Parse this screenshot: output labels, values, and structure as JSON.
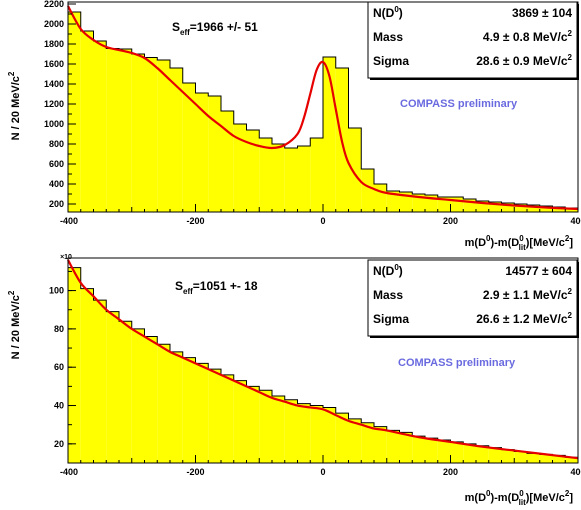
{
  "chart_data": [
    {
      "type": "bar",
      "style": "filled histogram with fit curve",
      "xlabel_parts": [
        "m(D",
        "0",
        ")-m(D",
        "0",
        "lit",
        ")[MeV/c",
        "2",
        "]"
      ],
      "ylabel_parts": [
        "N / 20 MeV/c",
        "2"
      ],
      "xlim": [
        -400,
        400
      ],
      "ylim": [
        120,
        2220
      ],
      "x_ticks": [
        "-400",
        "-200",
        "0",
        "200",
        "400"
      ],
      "y_ticks": [
        "200",
        "400",
        "600",
        "800",
        "1000",
        "1200",
        "1400",
        "1600",
        "1800",
        "2000",
        "2200"
      ],
      "grid": false,
      "bin_width": 20,
      "bin_low_edges": [
        -400,
        -380,
        -360,
        -340,
        -320,
        -300,
        -280,
        -260,
        -240,
        -220,
        -200,
        -180,
        -160,
        -140,
        -120,
        -100,
        -80,
        -60,
        -40,
        -20,
        0,
        20,
        40,
        60,
        80,
        100,
        120,
        140,
        160,
        180,
        200,
        220,
        240,
        260,
        280,
        300,
        320,
        340,
        360,
        380
      ],
      "values": [
        2120,
        1930,
        1830,
        1755,
        1750,
        1700,
        1665,
        1640,
        1560,
        1410,
        1310,
        1280,
        1130,
        1000,
        940,
        860,
        800,
        760,
        780,
        860,
        1670,
        1560,
        960,
        550,
        400,
        330,
        320,
        300,
        290,
        270,
        270,
        250,
        230,
        220,
        210,
        200,
        190,
        180,
        170,
        160
      ],
      "fit": {
        "color": "#e60000",
        "x": [
          -400,
          -380,
          -360,
          -340,
          -320,
          -300,
          -280,
          -260,
          -240,
          -220,
          -200,
          -180,
          -160,
          -140,
          -120,
          -100,
          -80,
          -60,
          -40,
          -30,
          -20,
          -10,
          0,
          10,
          20,
          30,
          40,
          60,
          80,
          100,
          150,
          200,
          250,
          300,
          350,
          400
        ],
        "y": [
          2180,
          1950,
          1840,
          1770,
          1740,
          1710,
          1660,
          1560,
          1440,
          1320,
          1200,
          1080,
          980,
          880,
          820,
          780,
          760,
          790,
          900,
          1060,
          1300,
          1540,
          1620,
          1480,
          1150,
          820,
          610,
          420,
          350,
          310,
          270,
          240,
          210,
          185,
          165,
          150
        ]
      },
      "fill_color": "#ffff00",
      "seff": {
        "prefix": "S",
        "sub": "eff",
        "text": "=1966 +/- 51"
      },
      "stats": [
        {
          "key_parts": [
            "N(D",
            "0",
            ")"
          ],
          "value": "3869 ± 104"
        },
        {
          "key_parts": [
            "Mass"
          ],
          "value": "4.9 ± 0.8 MeV/c",
          "sup": "2"
        },
        {
          "key_parts": [
            "Sigma"
          ],
          "value": "28.6 ± 0.9 MeV/c",
          "sup": "2"
        }
      ],
      "annotation": "COMPASS preliminary"
    },
    {
      "type": "bar",
      "style": "filled histogram with fit curve",
      "xlabel_parts": [
        "m(D",
        "0",
        ")-m(D",
        "0",
        "lit",
        ")[MeV/c",
        "2",
        "]"
      ],
      "ylabel_parts": [
        "N / 20 MeV/c",
        "2"
      ],
      "exponent_label": "×10",
      "xlim": [
        -400,
        400
      ],
      "ylim": [
        10,
        117
      ],
      "x_ticks": [
        "-400",
        "-200",
        "0",
        "200",
        "400"
      ],
      "y_ticks": [
        "20",
        "40",
        "60",
        "80",
        "100"
      ],
      "grid": false,
      "bin_width": 20,
      "bin_low_edges": [
        -400,
        -380,
        -360,
        -340,
        -320,
        -300,
        -280,
        -260,
        -240,
        -220,
        -200,
        -180,
        -160,
        -140,
        -120,
        -100,
        -80,
        -60,
        -40,
        -20,
        0,
        20,
        40,
        60,
        80,
        100,
        120,
        140,
        160,
        180,
        200,
        220,
        240,
        260,
        280,
        300,
        320,
        340,
        360,
        380
      ],
      "values": [
        112,
        101,
        95,
        89,
        84,
        80,
        76,
        72,
        68,
        65,
        62,
        59,
        56,
        53,
        50,
        48,
        45,
        43,
        41,
        40,
        39,
        36,
        33,
        31,
        29,
        27,
        26,
        24,
        23,
        22,
        21,
        20,
        19,
        18,
        17,
        16,
        15,
        14.5,
        14,
        13
      ],
      "fit": {
        "color": "#e60000",
        "x": [
          -400,
          -380,
          -360,
          -340,
          -320,
          -300,
          -280,
          -260,
          -240,
          -220,
          -200,
          -180,
          -160,
          -140,
          -120,
          -100,
          -80,
          -60,
          -40,
          -20,
          0,
          20,
          40,
          60,
          80,
          100,
          150,
          200,
          250,
          300,
          350,
          400
        ],
        "y": [
          116,
          104,
          97,
          90,
          85,
          80,
          76,
          72,
          68,
          65,
          62,
          59,
          56,
          53,
          50,
          47,
          44,
          42,
          40,
          39,
          38,
          35,
          32,
          30,
          28,
          27,
          23.5,
          21,
          18.5,
          16.5,
          14.5,
          12.5
        ]
      },
      "fill_color": "#ffff00",
      "seff": {
        "prefix": "S",
        "sub": "eff",
        "text": "=1051 +- 18"
      },
      "stats": [
        {
          "key_parts": [
            "N(D",
            "0",
            ")"
          ],
          "value": "14577 ± 604"
        },
        {
          "key_parts": [
            "Mass"
          ],
          "value": "2.9 ± 1.1  MeV/c",
          "sup": "2"
        },
        {
          "key_parts": [
            "Sigma"
          ],
          "value": "26.6 ± 1.2  MeV/c",
          "sup": "2"
        }
      ],
      "annotation": "COMPASS preliminary"
    }
  ]
}
